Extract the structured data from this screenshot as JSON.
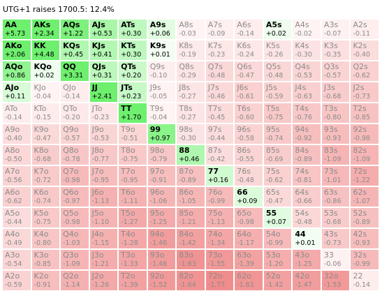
{
  "header": {
    "title": "UTG+1 raises 1700.5: 12.4%"
  },
  "colors": {
    "positive_light": "#ffffff",
    "positive_dark": "#6ef06e",
    "negative_light": "#fff5f5",
    "negative_dark": "#f08c8c"
  },
  "ranks": [
    "A",
    "K",
    "Q",
    "J",
    "T",
    "9",
    "8",
    "7",
    "6",
    "5",
    "4",
    "3",
    "2"
  ],
  "grid": [
    [
      {
        "hand": "AA",
        "ev": "+5.73"
      },
      {
        "hand": "AKs",
        "ev": "+2.34"
      },
      {
        "hand": "AQs",
        "ev": "+1.22"
      },
      {
        "hand": "AJs",
        "ev": "+0.53"
      },
      {
        "hand": "ATs",
        "ev": "+0.30"
      },
      {
        "hand": "A9s",
        "ev": "+0.06"
      },
      {
        "hand": "A8s",
        "ev": "-0.03"
      },
      {
        "hand": "A7s",
        "ev": "-0.09"
      },
      {
        "hand": "A6s",
        "ev": "-0.14"
      },
      {
        "hand": "A5s",
        "ev": "+0.02"
      },
      {
        "hand": "A4s",
        "ev": "-0.02"
      },
      {
        "hand": "A3s",
        "ev": "-0.07"
      },
      {
        "hand": "A2s",
        "ev": "-0.11"
      }
    ],
    [
      {
        "hand": "AKo",
        "ev": "+2.06"
      },
      {
        "hand": "KK",
        "ev": "+4.48"
      },
      {
        "hand": "KQs",
        "ev": "+0.45"
      },
      {
        "hand": "KJs",
        "ev": "+0.41"
      },
      {
        "hand": "KTs",
        "ev": "+0.30"
      },
      {
        "hand": "K9s",
        "ev": "+0.01"
      },
      {
        "hand": "K8s",
        "ev": "-0.19"
      },
      {
        "hand": "K7s",
        "ev": "-0.23"
      },
      {
        "hand": "K6s",
        "ev": "-0.24"
      },
      {
        "hand": "K5s",
        "ev": "-0.26"
      },
      {
        "hand": "K4s",
        "ev": "-0.30"
      },
      {
        "hand": "K3s",
        "ev": "-0.35"
      },
      {
        "hand": "K2s",
        "ev": "-0.40"
      }
    ],
    [
      {
        "hand": "AQo",
        "ev": "+0.86"
      },
      {
        "hand": "KQo",
        "ev": "+0.02"
      },
      {
        "hand": "QQ",
        "ev": "+3.31"
      },
      {
        "hand": "QJs",
        "ev": "+0.31"
      },
      {
        "hand": "QTs",
        "ev": "+0.20"
      },
      {
        "hand": "Q9s",
        "ev": "-0.10"
      },
      {
        "hand": "Q8s",
        "ev": "-0.29"
      },
      {
        "hand": "Q7s",
        "ev": "-0.48"
      },
      {
        "hand": "Q6s",
        "ev": "-0.47"
      },
      {
        "hand": "Q5s",
        "ev": "-0.48"
      },
      {
        "hand": "Q4s",
        "ev": "-0.53"
      },
      {
        "hand": "Q3s",
        "ev": "-0.57"
      },
      {
        "hand": "Q2s",
        "ev": "-0.62"
      }
    ],
    [
      {
        "hand": "AJo",
        "ev": "+0.11"
      },
      {
        "hand": "KJo",
        "ev": "-0.04"
      },
      {
        "hand": "QJo",
        "ev": "-0.14"
      },
      {
        "hand": "JJ",
        "ev": "+2.41"
      },
      {
        "hand": "JTs",
        "ev": "+0.23"
      },
      {
        "hand": "J9s",
        "ev": "-0.05"
      },
      {
        "hand": "J8s",
        "ev": "-0.27"
      },
      {
        "hand": "J7s",
        "ev": "-0.46"
      },
      {
        "hand": "J6s",
        "ev": "-0.61"
      },
      {
        "hand": "J5s",
        "ev": "-0.59"
      },
      {
        "hand": "J4s",
        "ev": "-0.63"
      },
      {
        "hand": "J3s",
        "ev": "-0.68"
      },
      {
        "hand": "J2s",
        "ev": "-0.73"
      }
    ],
    [
      {
        "hand": "ATo",
        "ev": "-0.14"
      },
      {
        "hand": "KTo",
        "ev": "-0.15"
      },
      {
        "hand": "QTo",
        "ev": "-0.20"
      },
      {
        "hand": "JTo",
        "ev": "-0.23"
      },
      {
        "hand": "TT",
        "ev": "+1.70"
      },
      {
        "hand": "T9s",
        "ev": "-0.04"
      },
      {
        "hand": "T8s",
        "ev": "-0.27"
      },
      {
        "hand": "T7s",
        "ev": "-0.45"
      },
      {
        "hand": "T6s",
        "ev": "-0.60"
      },
      {
        "hand": "T5s",
        "ev": "-0.75"
      },
      {
        "hand": "T4s",
        "ev": "-0.76"
      },
      {
        "hand": "T3s",
        "ev": "-0.80"
      },
      {
        "hand": "T2s",
        "ev": "-0.85"
      }
    ],
    [
      {
        "hand": "A9o",
        "ev": "-0.40"
      },
      {
        "hand": "K9o",
        "ev": "-0.47"
      },
      {
        "hand": "Q9o",
        "ev": "-0.57"
      },
      {
        "hand": "J9o",
        "ev": "-0.53"
      },
      {
        "hand": "T9o",
        "ev": "-0.51"
      },
      {
        "hand": "99",
        "ev": "+0.97"
      },
      {
        "hand": "98s",
        "ev": "-0.30"
      },
      {
        "hand": "97s",
        "ev": "-0.44"
      },
      {
        "hand": "96s",
        "ev": "-0.58"
      },
      {
        "hand": "95s",
        "ev": "-0.74"
      },
      {
        "hand": "94s",
        "ev": "-0.92"
      },
      {
        "hand": "93s",
        "ev": "-0.93"
      },
      {
        "hand": "92s",
        "ev": "-0.98"
      }
    ],
    [
      {
        "hand": "A8o",
        "ev": "-0.50"
      },
      {
        "hand": "K8o",
        "ev": "-0.68"
      },
      {
        "hand": "Q8o",
        "ev": "-0.78"
      },
      {
        "hand": "J8o",
        "ev": "-0.77"
      },
      {
        "hand": "T8o",
        "ev": "-0.75"
      },
      {
        "hand": "98o",
        "ev": "-0.79"
      },
      {
        "hand": "88",
        "ev": "+0.46"
      },
      {
        "hand": "87s",
        "ev": "-0.42"
      },
      {
        "hand": "86s",
        "ev": "-0.55"
      },
      {
        "hand": "85s",
        "ev": "-0.69"
      },
      {
        "hand": "84s",
        "ev": "-0.89"
      },
      {
        "hand": "83s",
        "ev": "-1.09"
      },
      {
        "hand": "82s",
        "ev": "-1.09"
      }
    ],
    [
      {
        "hand": "A7o",
        "ev": "-0.56"
      },
      {
        "hand": "K7o",
        "ev": "-0.72"
      },
      {
        "hand": "Q7o",
        "ev": "-0.98"
      },
      {
        "hand": "J7o",
        "ev": "-0.95"
      },
      {
        "hand": "T7o",
        "ev": "-0.95"
      },
      {
        "hand": "97o",
        "ev": "-0.91"
      },
      {
        "hand": "87o",
        "ev": "-0.89"
      },
      {
        "hand": "77",
        "ev": "+0.16"
      },
      {
        "hand": "76s",
        "ev": "-0.48"
      },
      {
        "hand": "75s",
        "ev": "-0.62"
      },
      {
        "hand": "74s",
        "ev": "-0.81"
      },
      {
        "hand": "73s",
        "ev": "-1.01"
      },
      {
        "hand": "72s",
        "ev": "-1.22"
      }
    ],
    [
      {
        "hand": "A6o",
        "ev": "-0.62"
      },
      {
        "hand": "K6o",
        "ev": "-0.74"
      },
      {
        "hand": "Q6o",
        "ev": "-0.97"
      },
      {
        "hand": "J6o",
        "ev": "-1.13"
      },
      {
        "hand": "T6o",
        "ev": "-1.11"
      },
      {
        "hand": "96o",
        "ev": "-1.06"
      },
      {
        "hand": "86o",
        "ev": "-1.05"
      },
      {
        "hand": "76o",
        "ev": "-0.99"
      },
      {
        "hand": "66",
        "ev": "+0.09"
      },
      {
        "hand": "65s",
        "ev": "-0.47"
      },
      {
        "hand": "64s",
        "ev": "-0.66"
      },
      {
        "hand": "63s",
        "ev": "-0.86"
      },
      {
        "hand": "62s",
        "ev": "-1.07"
      }
    ],
    [
      {
        "hand": "A5o",
        "ev": "-0.44"
      },
      {
        "hand": "K5o",
        "ev": "-0.75"
      },
      {
        "hand": "Q5o",
        "ev": "-0.98"
      },
      {
        "hand": "J5o",
        "ev": "-1.10"
      },
      {
        "hand": "T5o",
        "ev": "-1.27"
      },
      {
        "hand": "95o",
        "ev": "-1.25"
      },
      {
        "hand": "85o",
        "ev": "-1.21"
      },
      {
        "hand": "75o",
        "ev": "-1.13"
      },
      {
        "hand": "65o",
        "ev": "-0.98"
      },
      {
        "hand": "55",
        "ev": "+0.07"
      },
      {
        "hand": "54s",
        "ev": "-0.48"
      },
      {
        "hand": "53s",
        "ev": "-0.68"
      },
      {
        "hand": "52s",
        "ev": "-0.89"
      }
    ],
    [
      {
        "hand": "A4o",
        "ev": "-0.49"
      },
      {
        "hand": "K4o",
        "ev": "-0.80"
      },
      {
        "hand": "Q4o",
        "ev": "-1.03"
      },
      {
        "hand": "J4o",
        "ev": "-1.15"
      },
      {
        "hand": "T4o",
        "ev": "-1.28"
      },
      {
        "hand": "94o",
        "ev": "-1.46"
      },
      {
        "hand": "84o",
        "ev": "-1.42"
      },
      {
        "hand": "74o",
        "ev": "-1.34"
      },
      {
        "hand": "64o",
        "ev": "-1.17"
      },
      {
        "hand": "54o",
        "ev": "-0.99"
      },
      {
        "hand": "44",
        "ev": "+0.01"
      },
      {
        "hand": "43s",
        "ev": "-0.73"
      },
      {
        "hand": "42s",
        "ev": "-0.93"
      }
    ],
    [
      {
        "hand": "A3o",
        "ev": "-0.54"
      },
      {
        "hand": "K3o",
        "ev": "-0.85"
      },
      {
        "hand": "Q3o",
        "ev": "-1.09"
      },
      {
        "hand": "J3o",
        "ev": "-1.21"
      },
      {
        "hand": "T3o",
        "ev": "-1.33"
      },
      {
        "hand": "93o",
        "ev": "-1.46"
      },
      {
        "hand": "83o",
        "ev": "-1.63"
      },
      {
        "hand": "73o",
        "ev": "-1.55"
      },
      {
        "hand": "63o",
        "ev": "-1.39"
      },
      {
        "hand": "53o",
        "ev": "-1.20"
      },
      {
        "hand": "43o",
        "ev": "-1.25"
      },
      {
        "hand": "33",
        "ev": "-0.06"
      },
      {
        "hand": "32s",
        "ev": "-0.99"
      }
    ],
    [
      {
        "hand": "A2o",
        "ev": "-0.59"
      },
      {
        "hand": "K2o",
        "ev": "-0.91"
      },
      {
        "hand": "Q2o",
        "ev": "-1.14"
      },
      {
        "hand": "J2o",
        "ev": "-1.26"
      },
      {
        "hand": "T2o",
        "ev": "-1.39"
      },
      {
        "hand": "92o",
        "ev": "-1.52"
      },
      {
        "hand": "82o",
        "ev": "-1.64"
      },
      {
        "hand": "72o",
        "ev": "-1.77"
      },
      {
        "hand": "62o",
        "ev": "-1.61"
      },
      {
        "hand": "52o",
        "ev": "-1.42"
      },
      {
        "hand": "42o",
        "ev": "-1.47"
      },
      {
        "hand": "32o",
        "ev": "-1.53"
      },
      {
        "hand": "22",
        "ev": "-0.14"
      }
    ]
  ]
}
